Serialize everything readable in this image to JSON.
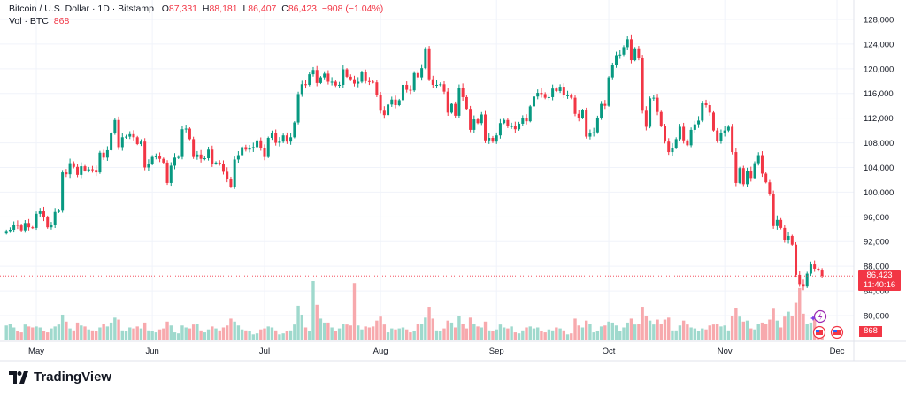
{
  "header": {
    "symbol": "Bitcoin / U.S. Dollar · 1D · Bitstamp",
    "open_label": "O",
    "open": "87,331",
    "high_label": "H",
    "high": "88,181",
    "low_label": "L",
    "low": "86,407",
    "close_label": "C",
    "close": "86,423",
    "change": "−908 (−1.04%)",
    "vol_label": "Vol · BTC",
    "vol": "868"
  },
  "price_tag": {
    "price": "86,423",
    "countdown": "11:40:16"
  },
  "volume_tag": "868",
  "logo": "TradingView",
  "colors": {
    "up": "#089981",
    "down": "#f23645",
    "up_vol": "#9fd9cd",
    "down_vol": "#f7a9ad",
    "grid": "#f0f3fa"
  },
  "chart_data": {
    "type": "candlestick",
    "title": "Bitcoin / U.S. Dollar · 1D · Bitstamp",
    "start_date": "Apr 23",
    "first_open": 93.3,
    "price_unit": "thousand USD",
    "ylim": [
      78,
      130
    ],
    "y_ticks": [
      "128,000",
      "124,000",
      "120,000",
      "116,000",
      "112,000",
      "108,000",
      "104,000",
      "100,000",
      "96,000",
      "92,000",
      "88,000",
      "84,000",
      "80,000"
    ],
    "x_ticks": [
      {
        "label": "May",
        "day": 8
      },
      {
        "label": "Jun",
        "day": 39
      },
      {
        "label": "Jul",
        "day": 69
      },
      {
        "label": "Aug",
        "day": 100
      },
      {
        "label": "Sep",
        "day": 131
      },
      {
        "label": "Oct",
        "day": 161
      },
      {
        "label": "Nov",
        "day": 192
      },
      {
        "label": "Dec",
        "day": 222
      }
    ],
    "closes": [
      93.7,
      93.9,
      94.7,
      94.6,
      93.8,
      95.0,
      94.3,
      94.2,
      96.5,
      96.9,
      95.9,
      94.3,
      94.7,
      96.8,
      97.0,
      103.2,
      102.9,
      104.7,
      104.1,
      102.8,
      104.2,
      103.5,
      103.7,
      103.6,
      103.2,
      106.4,
      105.6,
      106.8,
      109.6,
      111.7,
      107.3,
      108.9,
      109.0,
      109.4,
      108.9,
      107.8,
      108.2,
      104.0,
      104.6,
      105.7,
      105.8,
      105.4,
      104.8,
      101.5,
      104.3,
      105.6,
      105.7,
      110.2,
      110.3,
      108.6,
      105.7,
      106.1,
      105.4,
      105.5,
      106.9,
      104.6,
      104.8,
      104.6,
      103.3,
      102.2,
      100.9,
      105.3,
      106.0,
      107.3,
      106.9,
      107.1,
      107.3,
      108.4,
      107.1,
      105.7,
      108.8,
      109.6,
      108.0,
      108.2,
      109.2,
      108.2,
      108.9,
      111.3,
      115.9,
      117.5,
      117.4,
      119.1,
      119.8,
      117.7,
      118.6,
      119.2,
      117.9,
      117.9,
      117.3,
      117.4,
      119.9,
      118.7,
      118.3,
      117.6,
      117.9,
      119.4,
      118.0,
      117.9,
      117.8,
      115.7,
      113.2,
      112.5,
      114.2,
      115.0,
      114.1,
      114.9,
      117.4,
      116.6,
      116.5,
      119.3,
      118.6,
      120.1,
      123.3,
      118.3,
      117.4,
      117.4,
      117.5,
      116.3,
      112.9,
      114.3,
      112.4,
      116.9,
      115.4,
      113.5,
      110.1,
      111.8,
      111.2,
      112.6,
      108.4,
      108.8,
      108.2,
      109.2,
      111.2,
      111.7,
      110.7,
      110.7,
      110.2,
      111.1,
      112.0,
      111.5,
      113.9,
      115.5,
      116.1,
      115.9,
      115.3,
      115.4,
      116.8,
      116.4,
      117.1,
      115.7,
      115.7,
      115.3,
      112.7,
      112.0,
      113.3,
      109.0,
      109.6,
      109.7,
      112.1,
      114.3,
      114.0,
      118.6,
      120.6,
      122.2,
      122.3,
      123.5,
      124.8,
      121.4,
      123.3,
      121.7,
      113.2,
      110.6,
      115.2,
      115.3,
      113.0,
      110.7,
      108.2,
      106.5,
      107.2,
      108.6,
      110.6,
      108.4,
      107.6,
      110.1,
      111.0,
      111.6,
      114.5,
      114.1,
      112.9,
      110.0,
      108.3,
      109.6,
      110.0,
      110.6,
      106.5,
      101.5,
      103.9,
      101.3,
      103.4,
      102.3,
      104.7,
      106.0,
      103.0,
      101.6,
      99.7,
      94.5,
      95.5,
      94.2,
      92.2,
      92.9,
      91.5,
      86.6,
      85.1,
      84.7,
      86.8,
      88.3,
      87.6,
      87.3,
      86.423
    ],
    "volumes": [
      1500,
      1700,
      1300,
      900,
      800,
      1600,
      1400,
      1300,
      1400,
      1300,
      900,
      800,
      1200,
      1400,
      1600,
      2600,
      1900,
      1200,
      1000,
      1800,
      1500,
      1400,
      1100,
      1000,
      900,
      1300,
      1700,
      1400,
      1800,
      2300,
      2100,
      1000,
      900,
      1300,
      1200,
      1400,
      1200,
      1800,
      1000,
      900,
      800,
      1100,
      1200,
      1900,
      1500,
      800,
      700,
      1500,
      1300,
      1200,
      1600,
      1700,
      1000,
      800,
      1100,
      1400,
      1200,
      1000,
      1300,
      1500,
      2200,
      1900,
      1500,
      1100,
      1000,
      900,
      600,
      700,
      1100,
      1200,
      1400,
      1300,
      1000,
      600,
      700,
      900,
      1000,
      1600,
      3500,
      2600,
      1300,
      900,
      6000,
      3600,
      2200,
      1800,
      1800,
      1300,
      900,
      1200,
      1700,
      1600,
      1500,
      5800,
      1500,
      1100,
      1400,
      1300,
      1400,
      2000,
      2400,
      1600,
      800,
      1200,
      1100,
      1200,
      1300,
      1100,
      800,
      900,
      1700,
      1700,
      2300,
      3400,
      2200,
      1000,
      900,
      1200,
      2000,
      1800,
      1300,
      2500,
      1700,
      1200,
      2300,
      1700,
      1400,
      1300,
      1900,
      1000,
      900,
      1100,
      1600,
      1300,
      1200,
      1400,
      800,
      700,
      1000,
      1300,
      1400,
      1200,
      1300,
      900,
      800,
      1100,
      1000,
      1300,
      1200,
      1000,
      600,
      700,
      2200,
      1500,
      1300,
      2000,
      1700,
      800,
      900,
      1400,
      1500,
      1900,
      1800,
      1500,
      900,
      1300,
      1800,
      2200,
      1600,
      1700,
      3400,
      2500,
      2000,
      1600,
      2100,
      1700,
      2100,
      2300,
      1000,
      1000,
      1500,
      2000,
      1600,
      1300,
      1200,
      900,
      1200,
      1100,
      1500,
      1600,
      1700,
      1400,
      1500,
      1000,
      2500,
      3300,
      2400,
      1900,
      2000,
      1200,
      1100,
      1700,
      1800,
      1700,
      2100,
      3200,
      2000,
      1300,
      2400,
      2900,
      2500,
      3800,
      5300,
      2700,
      1700,
      1800,
      2300,
      1200,
      868
    ],
    "last_price": 86.423
  }
}
